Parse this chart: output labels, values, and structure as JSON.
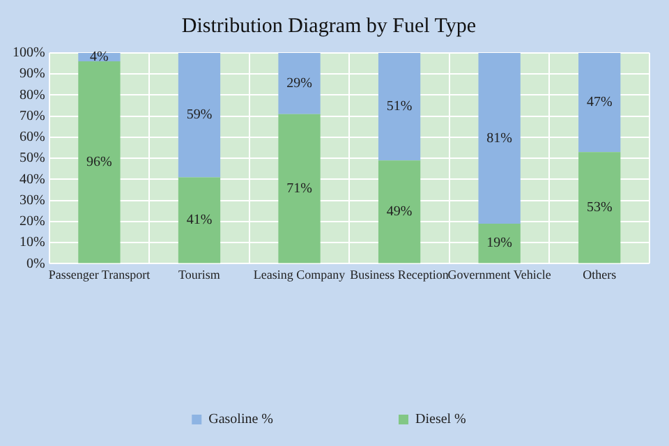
{
  "chart_data": {
    "type": "bar",
    "title": "Distribution Diagram by Fuel Type",
    "categories": [
      "Passenger Transport",
      "Tourism",
      "Leasing Company",
      "Business Reception",
      "Government Vehicle",
      "Others"
    ],
    "stacked": true,
    "series": [
      {
        "name": "Diesel %",
        "color": "#82c785",
        "values": [
          96,
          41,
          71,
          49,
          19,
          53
        ],
        "value_labels": [
          "96%",
          "41%",
          "71%",
          "49%",
          "19%",
          "53%"
        ]
      },
      {
        "name": "Gasoline %",
        "color": "#8eb4e3",
        "values": [
          4,
          59,
          29,
          51,
          81,
          47
        ],
        "value_labels": [
          "4%",
          "59%",
          "29%",
          "51%",
          "81%",
          "47%"
        ]
      }
    ],
    "ylim": [
      0,
      100
    ],
    "yticks": [
      {
        "value": 0,
        "label": "0%"
      },
      {
        "value": 10,
        "label": "10%"
      },
      {
        "value": 20,
        "label": "20%"
      },
      {
        "value": 30,
        "label": "30%"
      },
      {
        "value": 40,
        "label": "40%"
      },
      {
        "value": 50,
        "label": "50%"
      },
      {
        "value": 60,
        "label": "60%"
      },
      {
        "value": 70,
        "label": "70%"
      },
      {
        "value": 80,
        "label": "80%"
      },
      {
        "value": 90,
        "label": "90%"
      },
      {
        "value": 100,
        "label": "100%"
      }
    ],
    "grid": true,
    "legend": "bottom"
  }
}
